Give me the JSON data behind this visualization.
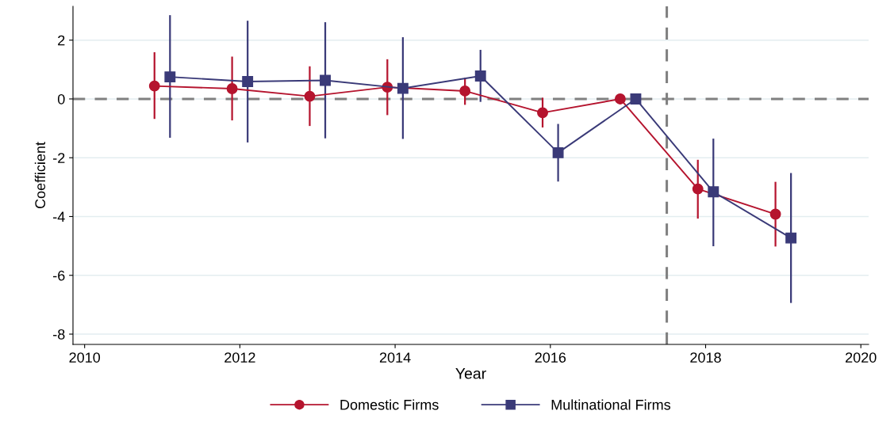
{
  "chart_data": {
    "type": "line",
    "xlabel": "Year",
    "ylabel": "Coefficient",
    "xlim": [
      2009.85,
      2020.1
    ],
    "xticks": [
      2010,
      2012,
      2014,
      2016,
      2018,
      2020
    ],
    "ylim": [
      -8.35,
      3.15
    ],
    "yticks": [
      -8,
      -6,
      -4,
      -2,
      0,
      2
    ],
    "grid": "y",
    "legend": "bottom",
    "ref_lines": [
      {
        "axis": "y",
        "value": 0,
        "label": null,
        "color": "#808080",
        "line_style": "dashed"
      },
      {
        "axis": "x",
        "value": 2017.5,
        "label": null,
        "color": "#808080",
        "line_style": "dashed"
      }
    ],
    "series": [
      {
        "name": "Domestic Firms",
        "color": "#b5142e",
        "marker": "circle",
        "x": [
          2010.9,
          2011.9,
          2012.9,
          2013.9,
          2014.9,
          2015.9,
          2016.9,
          2017.9,
          2018.9
        ],
        "values": [
          0.44,
          0.35,
          0.09,
          0.4,
          0.27,
          -0.47,
          0,
          -3.06,
          -3.92
        ],
        "errors": [
          [
            -0.68,
            1.59
          ],
          [
            -0.73,
            1.44
          ],
          [
            -0.92,
            1.11
          ],
          [
            -0.55,
            1.35
          ],
          [
            -0.2,
            0.72
          ],
          [
            -0.97,
            0.04
          ],
          null,
          [
            -4.07,
            -2.07
          ],
          [
            -5.02,
            -2.82
          ]
        ]
      },
      {
        "name": "Multinational Firms",
        "color": "#3a3a78",
        "marker": "square",
        "x": [
          2011.1,
          2012.1,
          2013.1,
          2014.1,
          2015.1,
          2016.1,
          2017.1,
          2018.1,
          2019.1
        ],
        "values": [
          0.75,
          0.59,
          0.63,
          0.36,
          0.78,
          -1.83,
          0,
          -3.16,
          -4.73
        ],
        "errors": [
          [
            -1.32,
            2.85
          ],
          [
            -1.48,
            2.66
          ],
          [
            -1.34,
            2.61
          ],
          [
            -1.36,
            2.1
          ],
          [
            -0.1,
            1.67
          ],
          [
            -2.81,
            -0.85
          ],
          null,
          [
            -5.01,
            -1.35
          ],
          [
            -6.94,
            -2.52
          ]
        ]
      }
    ]
  }
}
